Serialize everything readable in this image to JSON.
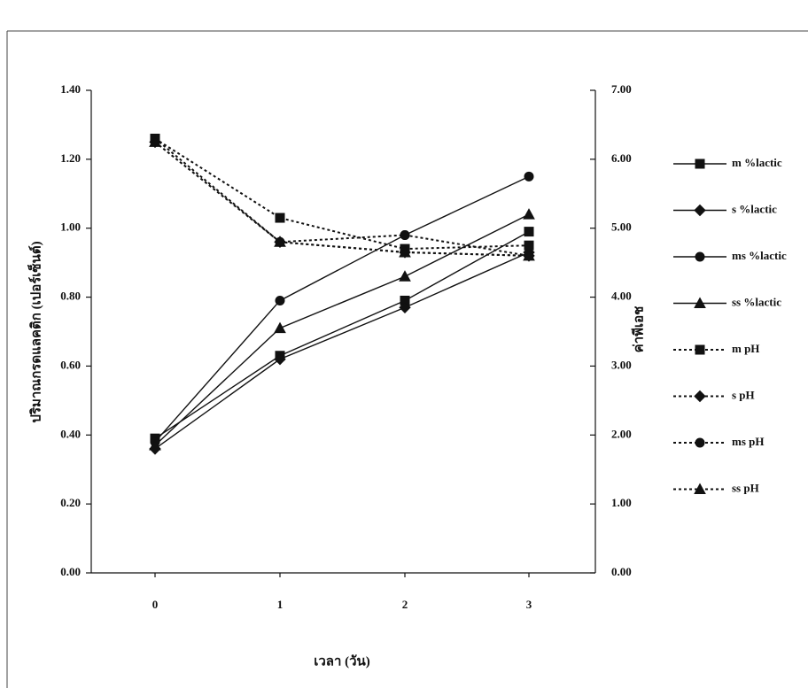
{
  "chart_data": {
    "type": "line",
    "y_label": "ปริมาณกรดแลคติก (เปอร์เซ็นต์)",
    "y2_label": "ค่าพีเอช",
    "x_label": "เวลา (วัน)",
    "categories": [
      "0",
      "1",
      "2",
      "3"
    ],
    "ylim": [
      0,
      1.4
    ],
    "yticks": [
      {
        "value": 0,
        "label": "0.00"
      },
      {
        "value": 0.2,
        "label": "0.20"
      },
      {
        "value": 0.4,
        "label": "0.40"
      },
      {
        "value": 0.6,
        "label": "0.60"
      },
      {
        "value": 0.8,
        "label": "0.80"
      },
      {
        "value": 1.0,
        "label": "1.00"
      },
      {
        "value": 1.2,
        "label": "1.20"
      },
      {
        "value": 1.4,
        "label": "1.40"
      }
    ],
    "y2lim": [
      0,
      7
    ],
    "y2ticks": [
      {
        "value": 0,
        "label": "0.00"
      },
      {
        "value": 1,
        "label": "1.00"
      },
      {
        "value": 2,
        "label": "2.00"
      },
      {
        "value": 3,
        "label": "3.00"
      },
      {
        "value": 4,
        "label": "4.00"
      },
      {
        "value": 5,
        "label": "5.00"
      },
      {
        "value": 6,
        "label": "6.00"
      },
      {
        "value": 7,
        "label": "7.00"
      }
    ],
    "legend": "right",
    "series": [
      {
        "name": "m %lactic",
        "color": "#111111",
        "marker": "square",
        "dash": "solid",
        "values": [
          0.39,
          0.63,
          0.79,
          0.99
        ]
      },
      {
        "name": "s %lactic",
        "color": "#111111",
        "marker": "diamond",
        "dash": "solid",
        "values": [
          0.36,
          0.62,
          0.77,
          0.93
        ]
      },
      {
        "name": "ms %lactic",
        "color": "#111111",
        "marker": "circle",
        "dash": "solid",
        "values": [
          0.38,
          0.79,
          0.98,
          1.15
        ]
      },
      {
        "name": "ss %lactic",
        "color": "#111111",
        "marker": "triangle",
        "dash": "solid",
        "values": [
          0.37,
          0.71,
          0.86,
          1.04
        ]
      },
      {
        "name": "m pH",
        "color": "#111111",
        "marker": "square",
        "dash": "dotted",
        "axis": "y2",
        "values": [
          6.3,
          5.15,
          4.7,
          4.75
        ]
      },
      {
        "name": "s pH",
        "color": "#111111",
        "marker": "diamond",
        "dash": "dotted",
        "axis": "y2",
        "values": [
          6.25,
          4.8,
          4.65,
          4.6
        ]
      },
      {
        "name": "ms pH",
        "color": "#111111",
        "marker": "circle",
        "dash": "dotted",
        "axis": "y2",
        "values": [
          6.3,
          4.8,
          4.9,
          4.6
        ]
      },
      {
        "name": "ss pH",
        "color": "#111111",
        "marker": "triangle",
        "dash": "dotted",
        "axis": "y2",
        "values": [
          6.25,
          4.8,
          4.65,
          4.6
        ]
      }
    ]
  }
}
